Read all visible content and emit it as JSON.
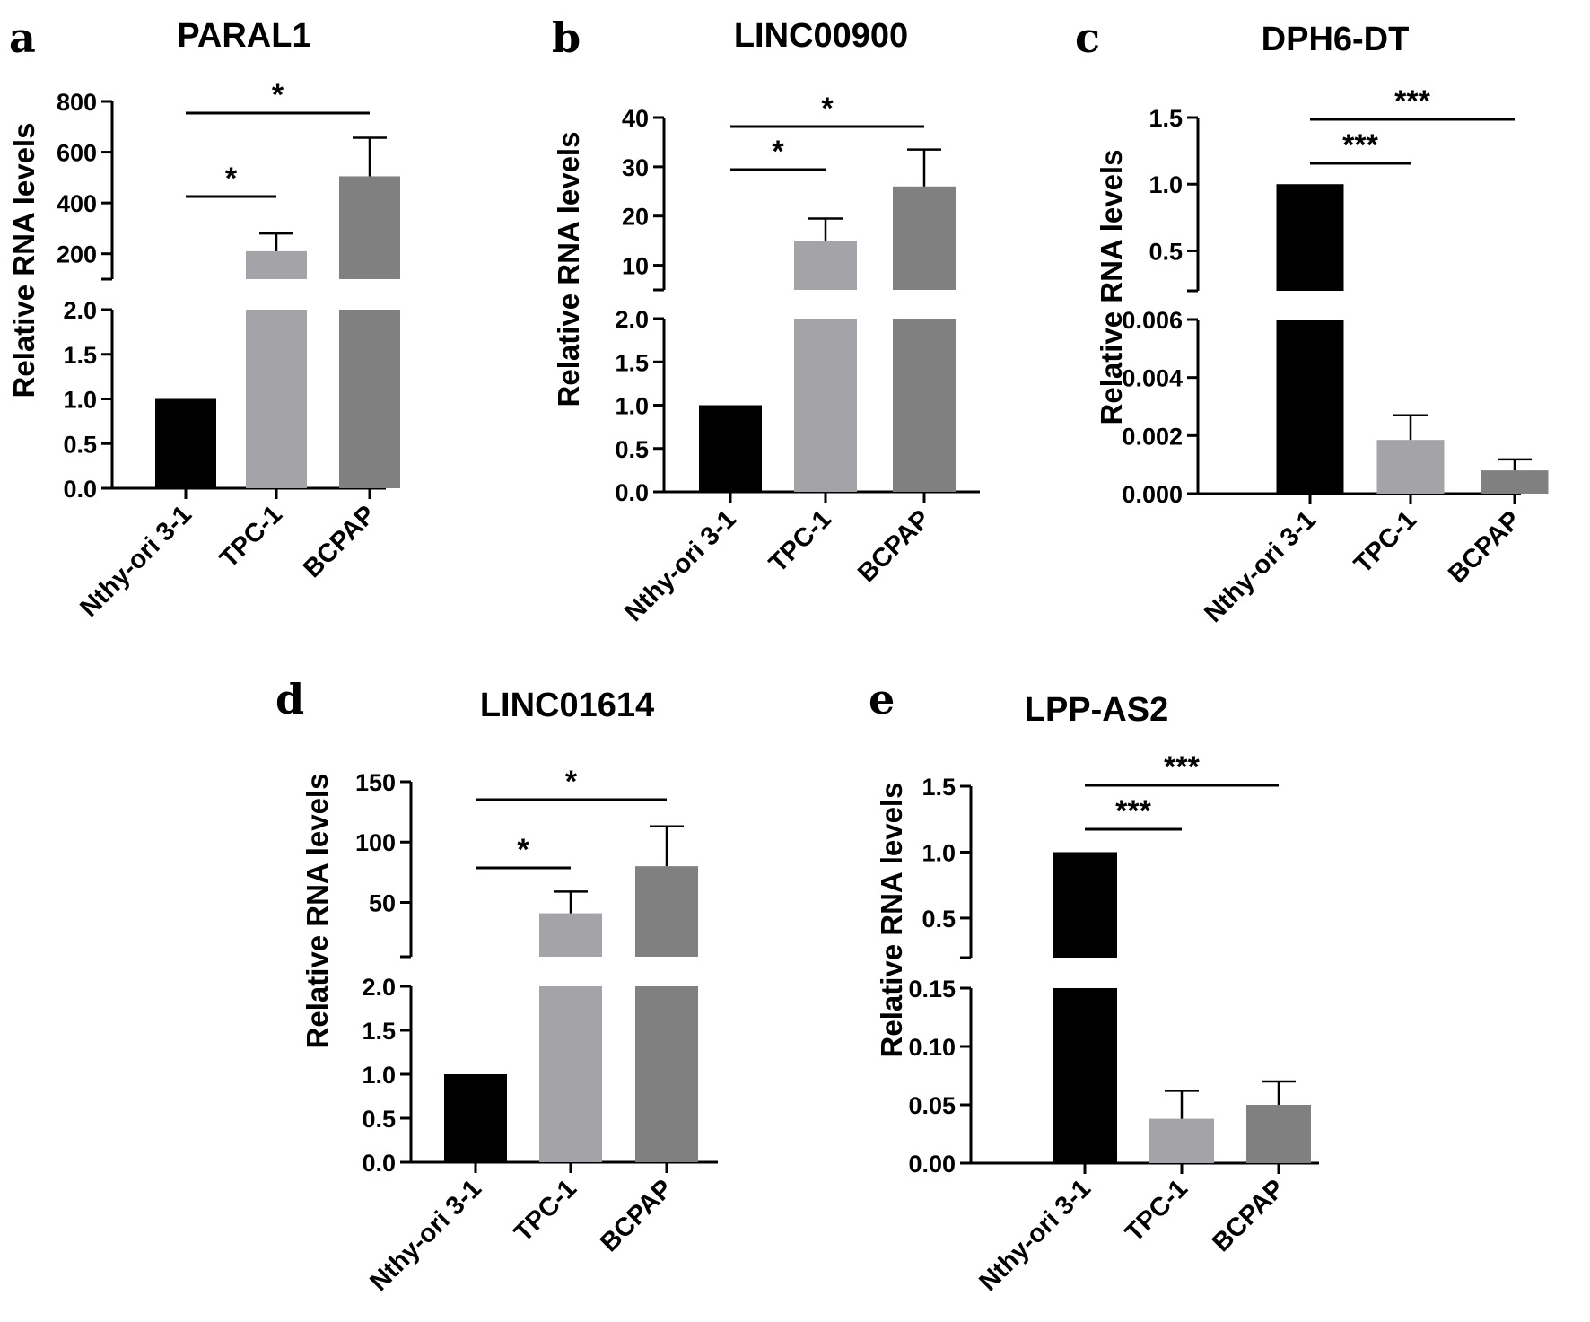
{
  "chart_data": [
    {
      "type": "bar",
      "panel_letter": "a",
      "title": "PARAL1",
      "ylabel": "Relative RNA levels",
      "categories": [
        "Nthy-ori 3-1",
        "TPC-1",
        "BCPAP"
      ],
      "values": [
        1,
        210,
        505
      ],
      "error_upper": [
        0,
        280,
        657
      ],
      "colors": [
        "#000000",
        "#a3a3a8",
        "#808080"
      ],
      "y_axis_break": true,
      "lower_segment": {
        "ylim": [
          0,
          2.0
        ],
        "ticks": [
          0.0,
          0.5,
          1.0,
          1.5,
          2.0
        ],
        "tick_labels": [
          "0.0",
          "0.5",
          "1.0",
          "1.5",
          "2.0"
        ]
      },
      "upper_segment": {
        "ylim": [
          100,
          800
        ],
        "ticks": [
          200,
          400,
          600,
          800
        ],
        "tick_labels": [
          "200",
          "400",
          "600",
          "800"
        ]
      },
      "significance": [
        {
          "from": 0,
          "to": 1,
          "label": "*"
        },
        {
          "from": 0,
          "to": 2,
          "label": "*"
        }
      ]
    },
    {
      "type": "bar",
      "panel_letter": "b",
      "title": "LINC00900",
      "ylabel": "Relative RNA levels",
      "categories": [
        "Nthy-ori 3-1",
        "TPC-1",
        "BCPAP"
      ],
      "values": [
        1,
        15,
        26
      ],
      "error_upper": [
        0,
        19.5,
        33.5
      ],
      "colors": [
        "#000000",
        "#a3a3a8",
        "#808080"
      ],
      "y_axis_break": true,
      "lower_segment": {
        "ylim": [
          0,
          2.0
        ],
        "ticks": [
          0.0,
          0.5,
          1.0,
          1.5,
          2.0
        ],
        "tick_labels": [
          "0.0",
          "0.5",
          "1.0",
          "1.5",
          "2.0"
        ]
      },
      "upper_segment": {
        "ylim": [
          5,
          40
        ],
        "ticks": [
          10,
          20,
          30,
          40
        ],
        "tick_labels": [
          "10",
          "20",
          "30",
          "40"
        ]
      },
      "significance": [
        {
          "from": 0,
          "to": 1,
          "label": "*"
        },
        {
          "from": 0,
          "to": 2,
          "label": "*"
        }
      ]
    },
    {
      "type": "bar",
      "panel_letter": "c",
      "title": "DPH6-DT",
      "ylabel": "Relative RNA levels",
      "categories": [
        "Nthy-ori 3-1",
        "TPC-1",
        "BCPAP"
      ],
      "values": [
        1,
        0.00185,
        0.0008
      ],
      "error_upper": [
        0,
        0.0027,
        0.00118
      ],
      "colors": [
        "#000000",
        "#a3a3a8",
        "#808080"
      ],
      "y_axis_break": true,
      "lower_segment": {
        "ylim": [
          0,
          0.006
        ],
        "ticks": [
          0.0,
          0.002,
          0.004,
          0.006
        ],
        "tick_labels": [
          "0.000",
          "0.002",
          "0.004",
          "0.006"
        ]
      },
      "upper_segment": {
        "ylim": [
          0.2,
          1.5
        ],
        "ticks": [
          0.5,
          1.0,
          1.5
        ],
        "tick_labels": [
          "0.5",
          "1.0",
          "1.5"
        ]
      },
      "significance": [
        {
          "from": 0,
          "to": 1,
          "label": "***"
        },
        {
          "from": 0,
          "to": 2,
          "label": "***"
        }
      ]
    },
    {
      "type": "bar",
      "panel_letter": "d",
      "title": "LINC01614",
      "ylabel": "Relative RNA levels",
      "categories": [
        "Nthy-ori 3-1",
        "TPC-1",
        "BCPAP"
      ],
      "values": [
        1,
        41,
        80
      ],
      "error_upper": [
        0,
        59,
        113
      ],
      "colors": [
        "#000000",
        "#a3a3a8",
        "#808080"
      ],
      "y_axis_break": true,
      "lower_segment": {
        "ylim": [
          0,
          2.0
        ],
        "ticks": [
          0.0,
          0.5,
          1.0,
          1.5,
          2.0
        ],
        "tick_labels": [
          "0.0",
          "0.5",
          "1.0",
          "1.5",
          "2.0"
        ]
      },
      "upper_segment": {
        "ylim": [
          5,
          150
        ],
        "ticks": [
          50,
          100,
          150
        ],
        "tick_labels": [
          "50",
          "100",
          "150"
        ]
      },
      "significance": [
        {
          "from": 0,
          "to": 1,
          "label": "*"
        },
        {
          "from": 0,
          "to": 2,
          "label": "*"
        }
      ]
    },
    {
      "type": "bar",
      "panel_letter": "e",
      "title": "LPP-AS2",
      "ylabel": "Relative RNA levels",
      "categories": [
        "Nthy-ori 3-1",
        "TPC-1",
        "BCPAP"
      ],
      "values": [
        1,
        0.038,
        0.05
      ],
      "error_upper": [
        0,
        0.062,
        0.07
      ],
      "colors": [
        "#000000",
        "#a3a3a8",
        "#808080"
      ],
      "y_axis_break": true,
      "lower_segment": {
        "ylim": [
          0,
          0.15
        ],
        "ticks": [
          0.0,
          0.05,
          0.1,
          0.15
        ],
        "tick_labels": [
          "0.00",
          "0.05",
          "0.10",
          "0.15"
        ]
      },
      "upper_segment": {
        "ylim": [
          0.2,
          1.5
        ],
        "ticks": [
          0.5,
          1.0,
          1.5
        ],
        "tick_labels": [
          "0.5",
          "1.0",
          "1.5"
        ]
      },
      "significance": [
        {
          "from": 0,
          "to": 1,
          "label": "***"
        },
        {
          "from": 0,
          "to": 2,
          "label": "***"
        }
      ]
    }
  ]
}
